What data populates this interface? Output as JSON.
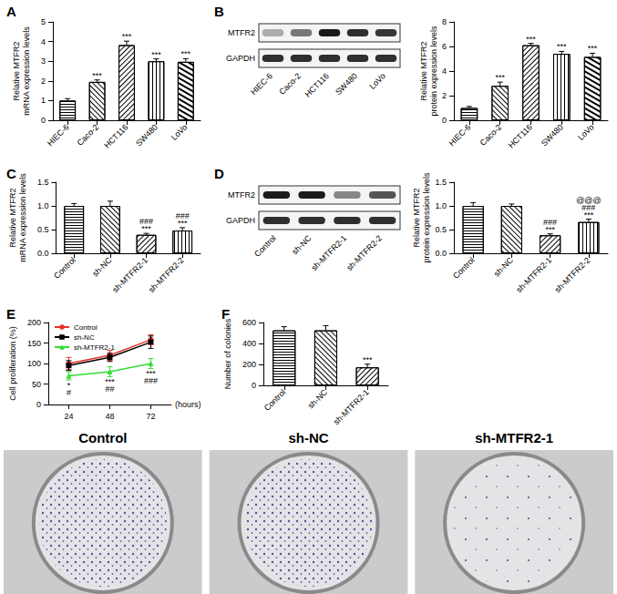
{
  "chart_data": [
    {
      "title": "A",
      "type": "bar",
      "categories": [
        "HIEC-6",
        "Caco-2",
        "HCT116",
        "SW480",
        "LoVo"
      ],
      "values": [
        1.0,
        1.95,
        3.82,
        3.0,
        2.97
      ],
      "errors": [
        0.1,
        0.1,
        0.2,
        0.12,
        0.16
      ],
      "annotations": [
        null,
        "***",
        "***",
        "***",
        "***"
      ],
      "ylabel": "Relative MTFR2\nmRNA expression levels",
      "ylim": [
        0,
        5
      ],
      "yticks": [
        0,
        1,
        2,
        3,
        4,
        5
      ],
      "color": "#ffffff",
      "grid": false
    },
    {
      "title": "B",
      "type": "bar",
      "categories": [
        "HIEC-6",
        "Caco-2",
        "HCT116",
        "SW480",
        "LoVo"
      ],
      "values": [
        1.0,
        2.8,
        6.1,
        5.4,
        5.15
      ],
      "errors": [
        0.12,
        0.3,
        0.15,
        0.2,
        0.3
      ],
      "annotations": [
        null,
        "***",
        "***",
        "***",
        "***"
      ],
      "ylabel": "Relative MTFR2\nprotein expression levels",
      "ylim": [
        0,
        8
      ],
      "yticks": [
        0,
        2,
        4,
        6,
        8
      ],
      "color": "#ffffff",
      "grid": false
    },
    {
      "title": "C",
      "type": "bar",
      "categories": [
        "Control",
        "sh-NC",
        "sh-MTFR2-1",
        "sh-MTFR2-2"
      ],
      "values": [
        1.0,
        1.0,
        0.39,
        0.48
      ],
      "errors": [
        0.05,
        0.1,
        0.03,
        0.06
      ],
      "annotations": [
        null,
        null,
        "###\n***",
        "###\n***"
      ],
      "ylabel": "Relative MTFR2\nmRNA expression levels",
      "ylim": [
        0,
        1.5
      ],
      "yticks": [
        {
          "value": 0,
          "label": "0.0"
        },
        {
          "value": 0.5,
          "label": "0.5"
        },
        {
          "value": 1,
          "label": "1.0"
        },
        {
          "value": 1.5,
          "label": "1.5"
        }
      ],
      "color": "#ffffff",
      "grid": false
    },
    {
      "title": "D",
      "type": "bar",
      "categories": [
        "Control",
        "sh-NC",
        "sh-MTFR2-1",
        "sh-MTFR2-2"
      ],
      "values": [
        1.0,
        1.0,
        0.38,
        0.66
      ],
      "errors": [
        0.07,
        0.04,
        0.03,
        0.06
      ],
      "annotations": [
        null,
        null,
        "###\n***",
        "@@@\n###\n***"
      ],
      "ylabel": "Relative MTFR2\nprotein expression levels",
      "ylim": [
        0,
        1.5
      ],
      "yticks": [
        {
          "value": 0,
          "label": "0.0"
        },
        {
          "value": 0.5,
          "label": "0.5"
        },
        {
          "value": 1,
          "label": "1.0"
        },
        {
          "value": 1.5,
          "label": "1.5"
        }
      ],
      "color": "#ffffff",
      "grid": false
    },
    {
      "title": "E",
      "type": "line",
      "categories": [
        "24",
        "48",
        "72"
      ],
      "xlabel": "(hours)",
      "ylabel": "Cell proliferation (%)",
      "ylim": [
        0,
        200
      ],
      "yticks": [
        0,
        50,
        100,
        150,
        200
      ],
      "grid": false,
      "legend": "top-left",
      "series": [
        {
          "name": "Control",
          "color": "#e8312a",
          "marker": "circle",
          "values": [
            100,
            120,
            158
          ],
          "errors": [
            15,
            12,
            12
          ]
        },
        {
          "name": "sh-NC",
          "color": "#000000",
          "marker": "square",
          "values": [
            95,
            115,
            152
          ],
          "errors": [
            12,
            10,
            15
          ]
        },
        {
          "name": "sh-MTFR2-1",
          "color": "#33dd33",
          "marker": "triangle",
          "values": [
            70,
            80,
            100
          ],
          "errors": [
            10,
            12,
            12
          ],
          "annotations": [
            "*\n#",
            "***\n##",
            "***\n###"
          ]
        }
      ]
    },
    {
      "title": "F",
      "type": "bar",
      "categories": [
        "Control",
        "sh-NC",
        "sh-MTFR2-1"
      ],
      "values": [
        525,
        525,
        172
      ],
      "errors": [
        35,
        45,
        30
      ],
      "annotations": [
        null,
        null,
        "***"
      ],
      "ylabel": "Number of colonies",
      "ylim": [
        0,
        600
      ],
      "yticks": [
        0,
        200,
        400,
        600
      ],
      "color": "#ffffff",
      "grid": false
    }
  ],
  "blots": [
    {
      "rows": [
        "MTFR2",
        "GAPDH"
      ],
      "lanes": [
        "HIEC-6",
        "Caco-2",
        "HCT116",
        "SW480",
        "LoVo"
      ]
    },
    {
      "rows": [
        "MTFR2",
        "GAPDH"
      ],
      "lanes": [
        "Control",
        "sh-NC",
        "sh-MTFR2-1",
        "sh-MTFR2-2"
      ]
    }
  ],
  "colony_images": {
    "labels": [
      "Control",
      "sh-NC",
      "sh-MTFR2-1"
    ]
  }
}
